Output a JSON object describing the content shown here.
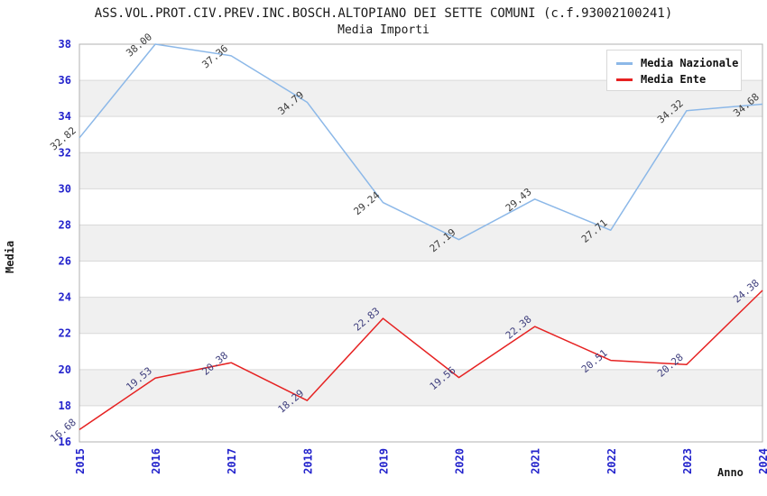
{
  "chart_data": {
    "type": "line",
    "title": "ASS.VOL.PROT.CIV.PREV.INC.BOSCH.ALTOPIANO DEI SETTE COMUNI (c.f.93002100241)",
    "subtitle": "Media Importi",
    "xlabel": "Anno",
    "ylabel": "Media",
    "x": [
      "2015",
      "2016",
      "2017",
      "2018",
      "2019",
      "2020",
      "2021",
      "2022",
      "2023",
      "2024"
    ],
    "ylim": [
      16,
      38
    ],
    "ytick_step": 2,
    "yticks": [
      16,
      18,
      20,
      22,
      24,
      26,
      28,
      30,
      32,
      34,
      36,
      38
    ],
    "grid": true,
    "legend_position": "top-right",
    "band_colors": [
      "#ffffff",
      "#f0f0f0"
    ],
    "gridline_color": "#d9d9d9",
    "plot_border_color": "#b0b0b0",
    "axis_tick_color": "#2323cc",
    "series": [
      {
        "name": "Media Nazionale",
        "color": "#8cb8e8",
        "label_color": "#3a3a3a",
        "values": [
          32.82,
          38.0,
          37.36,
          34.79,
          29.24,
          27.19,
          29.43,
          27.71,
          34.32,
          34.68
        ],
        "labels": [
          "32.82",
          "38.00",
          "37.36",
          "34.79",
          "29.24",
          "27.19",
          "29.43",
          "27.71",
          "34.32",
          "34.68"
        ]
      },
      {
        "name": "Media Ente",
        "color": "#e62222",
        "label_color": "#3e3e7d",
        "values": [
          16.68,
          19.53,
          20.38,
          18.29,
          22.83,
          19.56,
          22.38,
          20.51,
          20.28,
          24.38
        ],
        "labels": [
          "16.68",
          "19.53",
          "20.38",
          "18.29",
          "22.83",
          "19.56",
          "22.38",
          "20.51",
          "20.28",
          "24.38"
        ]
      }
    ]
  }
}
